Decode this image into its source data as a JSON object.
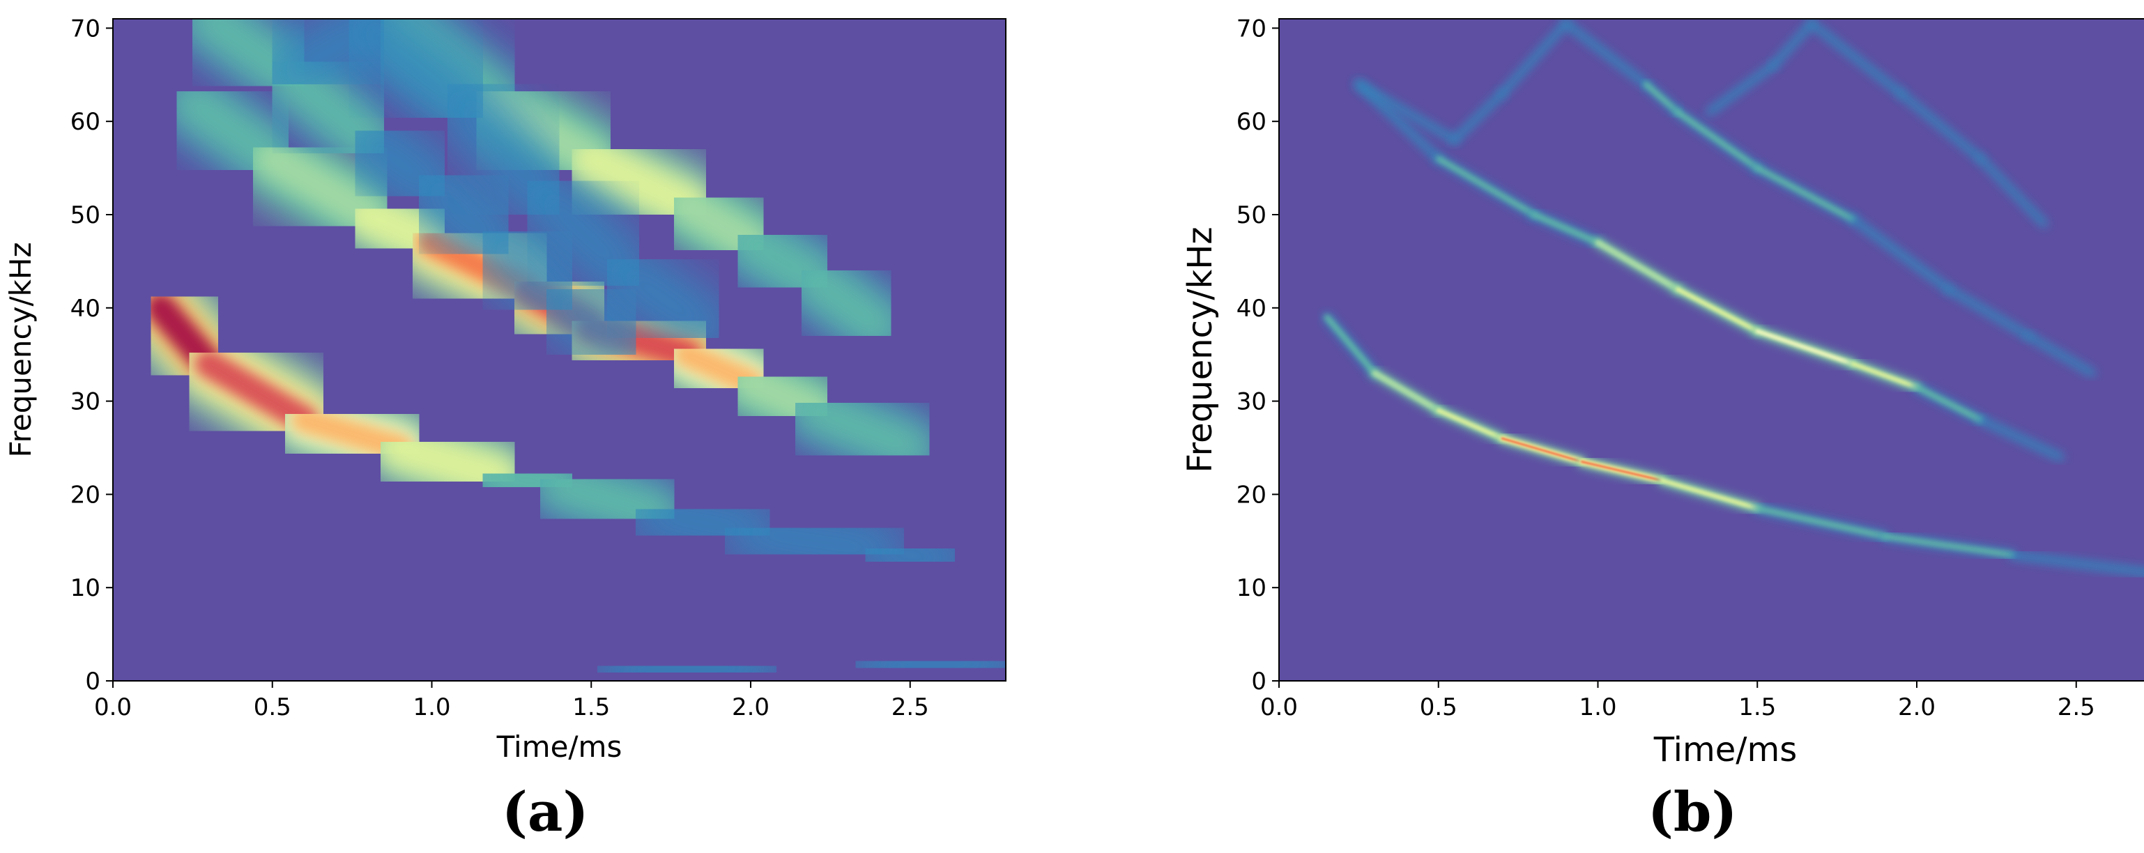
{
  "chart_data": [
    {
      "type": "heatmap",
      "panel_label": "(a)",
      "xlabel": "Time/ms",
      "ylabel": "Frequency/kHz",
      "xlim": [
        0,
        2.8
      ],
      "ylim": [
        0,
        71
      ],
      "x_ticks": [
        "0.0",
        "0.5",
        "1.0",
        "1.5",
        "2.0",
        "2.5"
      ],
      "x_tick_values": [
        0,
        0.5,
        1.0,
        1.5,
        2.0,
        2.5
      ],
      "y_ticks": [
        "0",
        "10",
        "20",
        "30",
        "40",
        "50",
        "60",
        "70"
      ],
      "y_tick_values": [
        0,
        10,
        20,
        30,
        40,
        50,
        60,
        70
      ],
      "colormap": "Spectral_r",
      "background_color": "#5e4fa2",
      "ridges": [
        {
          "points": [
            [
              0.15,
              40
            ],
            [
              0.3,
              34
            ],
            [
              0.6,
              28
            ],
            [
              0.9,
              25
            ],
            [
              1.2,
              22
            ],
            [
              1.4,
              21
            ],
            [
              1.7,
              18
            ],
            [
              2.0,
              16
            ],
            [
              2.4,
              14
            ],
            [
              2.6,
              13
            ]
          ],
          "peak": [
            1.0,
            0.95,
            0.82,
            0.7,
            0.55,
            0.4,
            0.25,
            0.2,
            0.18,
            0.15
          ]
        },
        {
          "points": [
            [
              0.25,
              62
            ],
            [
              0.5,
              56
            ],
            [
              0.8,
              50
            ],
            [
              1.0,
              47
            ],
            [
              1.3,
              42
            ],
            [
              1.5,
              38
            ],
            [
              1.8,
              35
            ],
            [
              2.0,
              32
            ],
            [
              2.2,
              29
            ],
            [
              2.5,
              25
            ]
          ],
          "peak": [
            0.28,
            0.42,
            0.6,
            0.75,
            0.9,
            1.0,
            0.85,
            0.65,
            0.38,
            0.22
          ]
        },
        {
          "points": [
            [
              0.9,
              70
            ],
            [
              1.2,
              62
            ],
            [
              1.5,
              56
            ],
            [
              1.8,
              51
            ],
            [
              2.0,
              47
            ],
            [
              2.2,
              43
            ],
            [
              2.4,
              38
            ]
          ],
          "peak": [
            0.4,
            0.5,
            0.58,
            0.58,
            0.5,
            0.42,
            0.3
          ]
        },
        {
          "points": [
            [
              0.3,
              71
            ],
            [
              0.55,
              65
            ],
            [
              0.8,
              58
            ],
            [
              1.0,
              53
            ],
            [
              1.2,
              47
            ],
            [
              1.4,
              41
            ],
            [
              1.6,
              36
            ]
          ],
          "peak": [
            0.35,
            0.35,
            0.3,
            0.26,
            0.2,
            0.16,
            0.14
          ]
        },
        {
          "points": [
            [
              0.55,
              65
            ],
            [
              0.8,
              70
            ],
            [
              1.1,
              62
            ],
            [
              1.35,
              52
            ],
            [
              1.6,
              44
            ],
            [
              1.85,
              38
            ]
          ],
          "peak": [
            0.25,
            0.28,
            0.25,
            0.2,
            0.16,
            0.12
          ]
        },
        {
          "points": [
            [
              1.6,
              1
            ],
            [
              2.0,
              1.5
            ],
            [
              2.4,
              1.5
            ],
            [
              2.75,
              2
            ]
          ],
          "peak": [
            0.2,
            0.24,
            0.2,
            0.16
          ]
        }
      ]
    },
    {
      "type": "heatmap",
      "panel_label": "(b)",
      "xlabel": "Time/ms",
      "ylabel": "Frequency/kHz",
      "xlim": [
        0,
        2.8
      ],
      "ylim": [
        0,
        71
      ],
      "x_ticks": [
        "0.0",
        "0.5",
        "1.0",
        "1.5",
        "2.0",
        "2.5"
      ],
      "x_tick_values": [
        0,
        0.5,
        1.0,
        1.5,
        2.0,
        2.5
      ],
      "y_ticks": [
        "0",
        "10",
        "20",
        "30",
        "40",
        "50",
        "60",
        "70"
      ],
      "y_tick_values": [
        0,
        10,
        20,
        30,
        40,
        50,
        60,
        70
      ],
      "colormap": "Spectral_r",
      "background_color": "#5e4fa2",
      "ridges": [
        {
          "points": [
            [
              0.15,
              39
            ],
            [
              0.3,
              33
            ],
            [
              0.5,
              29
            ],
            [
              0.7,
              26
            ],
            [
              0.95,
              23.5
            ],
            [
              1.2,
              21.5
            ],
            [
              1.5,
              18.5
            ],
            [
              1.9,
              15.5
            ],
            [
              2.3,
              13.5
            ],
            [
              2.75,
              11.5
            ]
          ],
          "peak": [
            0.35,
            0.5,
            0.6,
            0.72,
            0.92,
            0.82,
            0.45,
            0.35,
            0.3,
            0.25
          ]
        },
        {
          "points": [
            [
              0.25,
              64
            ],
            [
              0.5,
              56
            ],
            [
              0.8,
              50
            ],
            [
              1.0,
              47
            ],
            [
              1.25,
              42
            ],
            [
              1.5,
              37.5
            ],
            [
              1.8,
              34
            ],
            [
              2.0,
              31.5
            ],
            [
              2.2,
              28
            ],
            [
              2.45,
              24
            ]
          ],
          "peak": [
            0.2,
            0.28,
            0.4,
            0.5,
            0.62,
            0.72,
            0.68,
            0.52,
            0.3,
            0.18
          ]
        },
        {
          "points": [
            [
              0.9,
              70.5
            ],
            [
              1.15,
              64
            ],
            [
              1.25,
              61
            ],
            [
              1.5,
              55
            ],
            [
              1.8,
              49.5
            ],
            [
              2.1,
              42
            ],
            [
              2.35,
              37
            ],
            [
              2.55,
              33
            ]
          ],
          "peak": [
            0.2,
            0.26,
            0.42,
            0.34,
            0.3,
            0.24,
            0.18,
            0.14
          ]
        },
        {
          "points": [
            [
              0.25,
              64
            ],
            [
              0.55,
              58
            ],
            [
              0.7,
              63
            ],
            [
              0.9,
              70.5
            ]
          ],
          "peak": [
            0.16,
            0.2,
            0.18,
            0.18
          ]
        },
        {
          "points": [
            [
              1.35,
              61
            ],
            [
              1.55,
              66
            ],
            [
              1.67,
              70.5
            ],
            [
              1.95,
              63
            ],
            [
              2.2,
              56
            ],
            [
              2.4,
              49
            ]
          ],
          "peak": [
            0.16,
            0.2,
            0.2,
            0.18,
            0.15,
            0.12
          ]
        }
      ]
    }
  ]
}
